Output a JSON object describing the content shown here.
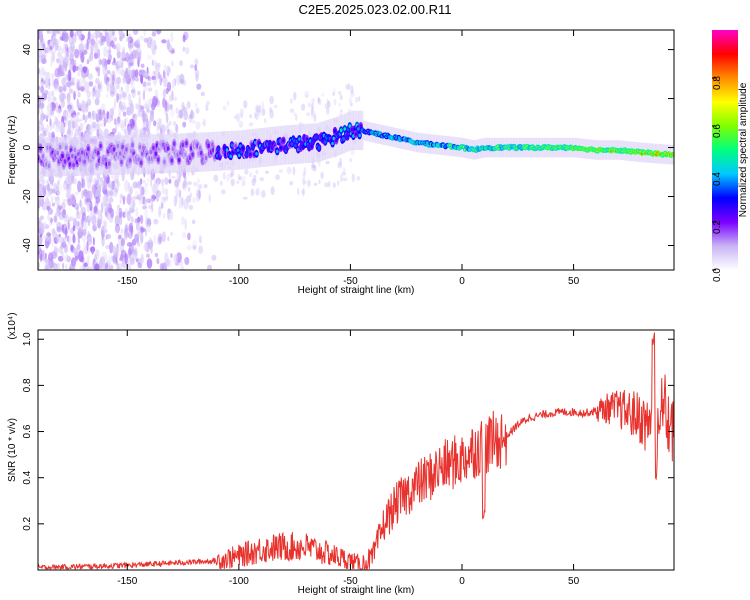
{
  "title": "C2E5.2025.023.02.00.R11",
  "colorbar": {
    "label": "Normalized spectral amplitude",
    "ticks": [
      0.0,
      0.2,
      0.4,
      0.6,
      0.8
    ],
    "tick_labels": [
      "0.0",
      "0.2",
      "0.4",
      "0.6",
      "0.8"
    ],
    "range": [
      0,
      1
    ],
    "colormap": [
      "#ffffff",
      "#c8b4f5",
      "#7a00ff",
      "#0000ff",
      "#00c8ff",
      "#00ff7f",
      "#7fff00",
      "#ffff00",
      "#ff8c00",
      "#ff0000",
      "#ff00c8"
    ]
  },
  "chart_data": [
    {
      "type": "heatmap",
      "name": "spectrogram",
      "xlabel": "Height of straight line (km)",
      "ylabel": "Frequency (Hz)",
      "xlim": [
        -190,
        95
      ],
      "ylim": [
        -50,
        48
      ],
      "x_ticks": [
        -150,
        -100,
        -50,
        0,
        50
      ],
      "y_ticks": [
        -40,
        -20,
        0,
        20,
        40
      ],
      "ridge": {
        "x": [
          -190,
          -150,
          -120,
          -100,
          -80,
          -65,
          -55,
          -50,
          -45,
          -40,
          -35,
          -30,
          -25,
          -20,
          -10,
          0,
          5,
          10,
          20,
          30,
          40,
          50,
          60,
          70,
          80,
          95
        ],
        "freq": [
          -4,
          -3,
          -2,
          -1,
          1,
          2,
          5,
          7,
          7,
          6,
          5,
          4,
          3,
          2,
          1,
          0,
          -1,
          0,
          0,
          0,
          0,
          0,
          -1,
          -1,
          -2,
          -3
        ]
      },
      "noise_region_x": [
        -190,
        -110
      ],
      "scattered_region_x": [
        -190,
        -45
      ]
    },
    {
      "type": "line",
      "name": "snr",
      "xlabel": "Height of straight line (km)",
      "ylabel": "SNR (10 * v/v)",
      "y_scale_label": "(x10⁴)",
      "xlim": [
        -190,
        95
      ],
      "ylim": [
        0,
        1.04
      ],
      "x_ticks": [
        -150,
        -100,
        -50,
        0,
        50
      ],
      "y_ticks": [
        0.2,
        0.4,
        0.6,
        0.8,
        1.0
      ],
      "color": "#e8322d",
      "series": [
        {
          "x": [
            -190,
            -170,
            -150,
            -130,
            -110,
            -100,
            -90,
            -80,
            -70,
            -60,
            -50,
            -45,
            -40,
            -35,
            -30,
            -25,
            -20,
            -15,
            -10,
            -5,
            0,
            5,
            10,
            15,
            20,
            25,
            30,
            35,
            40,
            45,
            50,
            55,
            60,
            65,
            70,
            75,
            80,
            83,
            86,
            88,
            90,
            92,
            95
          ],
          "y": [
            0.01,
            0.015,
            0.02,
            0.03,
            0.04,
            0.06,
            0.09,
            0.1,
            0.1,
            0.07,
            0.04,
            0.02,
            0.05,
            0.2,
            0.28,
            0.33,
            0.37,
            0.4,
            0.44,
            0.46,
            0.48,
            0.52,
            0.54,
            0.56,
            0.58,
            0.63,
            0.66,
            0.67,
            0.68,
            0.685,
            0.685,
            0.68,
            0.69,
            0.7,
            0.7,
            0.68,
            0.66,
            0.62,
            0.7,
            0.55,
            0.75,
            0.65,
            0.6
          ]
        }
      ]
    }
  ]
}
